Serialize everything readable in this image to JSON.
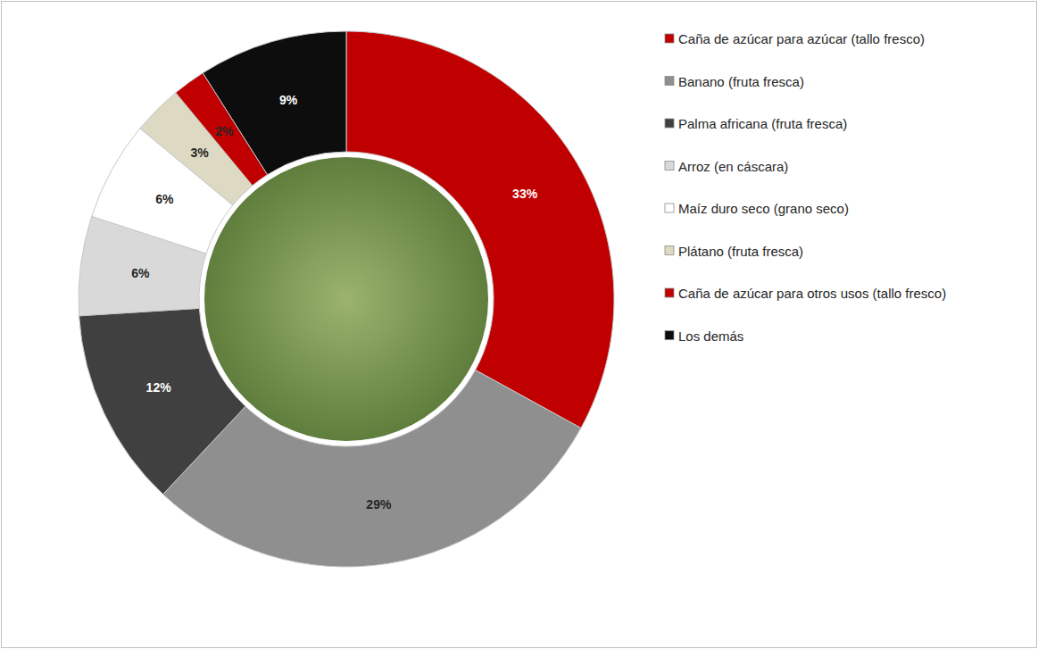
{
  "chart_data": {
    "type": "pie",
    "categories": [
      "Caña de azúcar para azúcar (tallo fresco)",
      "Banano (fruta fresca)",
      "Palma africana (fruta fresca)",
      "Arroz (en cáscara)",
      "Maíz duro seco (grano seco)",
      "Plátano (fruta fresca)",
      "Caña de azúcar para otros usos (tallo fresco)",
      "Los demás"
    ],
    "values": [
      33,
      29,
      12,
      6,
      6,
      3,
      2,
      9
    ],
    "value_labels": [
      "33%",
      "29%",
      "12%",
      "6%",
      "6%",
      "3%",
      "2%",
      "9%"
    ],
    "colors": [
      "#c00000",
      "#8f8f8f",
      "#404040",
      "#d9d9d9",
      "#ffffff",
      "#ddd9c3",
      "#c00000",
      "#0d0d0d"
    ],
    "data_labels": true,
    "legend": "right"
  }
}
